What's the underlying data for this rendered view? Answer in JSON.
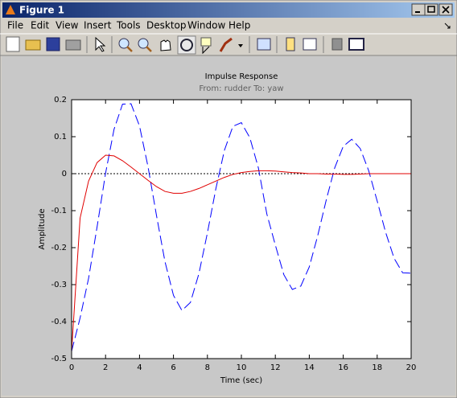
{
  "window": {
    "title": "Figure 1"
  },
  "menu": [
    "File",
    "Edit",
    "View",
    "Insert",
    "Tools",
    "Desktop",
    "Window",
    "Help"
  ],
  "chart_data": {
    "type": "line",
    "title": "Impulse Response",
    "subtitle": "From: rudder  To: yaw",
    "x_label": "Time (sec)",
    "y_label": "Amplitude",
    "x": [
      0,
      0.5,
      1,
      1.5,
      2,
      2.5,
      3,
      3.5,
      4,
      4.5,
      5,
      5.5,
      6,
      6.5,
      7,
      7.5,
      8,
      8.5,
      9,
      9.5,
      10,
      10.5,
      11,
      11.5,
      12,
      12.5,
      13,
      13.5,
      14,
      14.5,
      15,
      15.5,
      16,
      16.5,
      17,
      17.5,
      18,
      18.5,
      19,
      19.5,
      20
    ],
    "series": [
      {
        "color": "#0000ff",
        "linestyle": "dashed",
        "values": [
          -0.48,
          -0.39,
          -0.283,
          -0.144,
          0.001,
          0.12,
          0.188,
          0.189,
          0.129,
          0.019,
          -0.113,
          -0.238,
          -0.329,
          -0.37,
          -0.348,
          -0.27,
          -0.16,
          -0.04,
          0.063,
          0.128,
          0.138,
          0.097,
          0.016,
          -0.109,
          -0.193,
          -0.273,
          -0.313,
          -0.304,
          -0.252,
          -0.167,
          -0.071,
          0.016,
          0.074,
          0.093,
          0.068,
          0.008,
          -0.074,
          -0.159,
          -0.229,
          -0.268,
          -0.269
        ]
      },
      {
        "color": "#e00000",
        "linestyle": "solid",
        "values": [
          -0.48,
          -0.12,
          -0.02,
          0.03,
          0.05,
          0.048,
          0.035,
          0.018,
          0.0,
          -0.018,
          -0.035,
          -0.048,
          -0.053,
          -0.053,
          -0.048,
          -0.04,
          -0.03,
          -0.02,
          -0.01,
          -0.002,
          0.003,
          0.006,
          0.008,
          0.008,
          0.007,
          0.005,
          0.003,
          0.002,
          0.0,
          0.0,
          -0.001,
          -0.001,
          -0.002,
          -0.002,
          -0.001,
          0.0,
          0.0,
          0.0,
          0.0,
          0.0,
          0.0
        ]
      }
    ],
    "xlim": [
      0,
      20
    ],
    "xticks": [
      0,
      2,
      4,
      6,
      8,
      10,
      12,
      14,
      16,
      18,
      20
    ],
    "ylim": [
      -0.5,
      0.2
    ],
    "yticks": [
      -0.5,
      -0.4,
      -0.3,
      -0.2,
      -0.1,
      0,
      0.1,
      0.2
    ],
    "zero_line": true,
    "grid": false
  }
}
